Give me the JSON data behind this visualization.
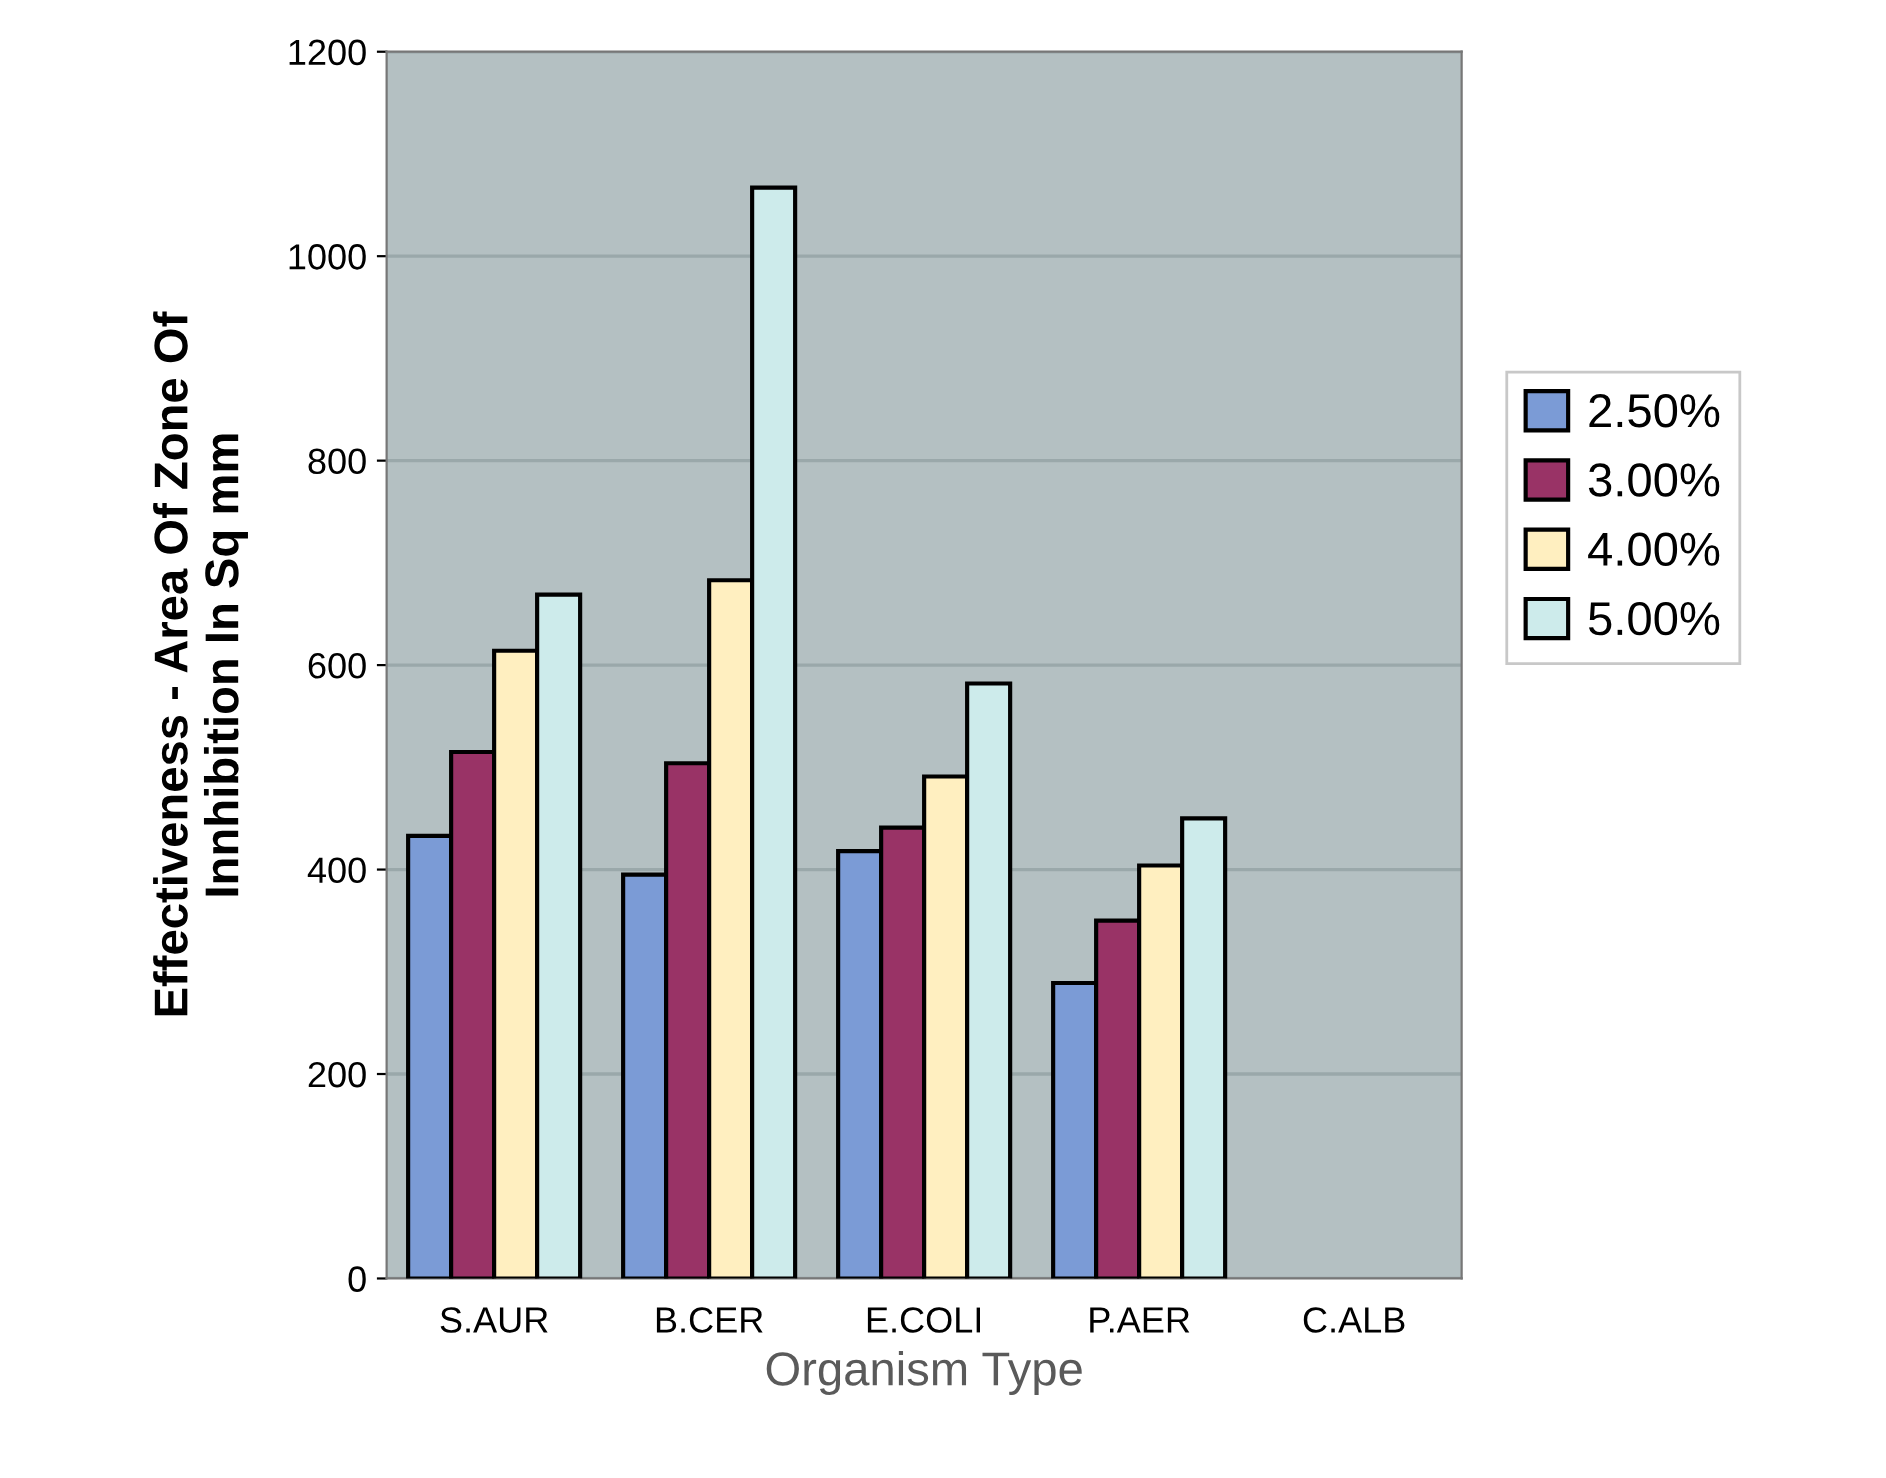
{
  "chart_data": {
    "type": "bar",
    "xlabel": "Organism Type",
    "ylabel": "Effectiveness - Area Of Zone Of\nInnhibition In Sq mm",
    "categories": [
      "S.AUR",
      "B.CER",
      "E.COLI",
      "P.AER",
      "C.ALB"
    ],
    "series": [
      {
        "name": "2.50%",
        "color": "#7b9bd6",
        "values": [
          433,
          395,
          418,
          289,
          null
        ]
      },
      {
        "name": "3.00%",
        "color": "#993366",
        "values": [
          515,
          504,
          441,
          350,
          null
        ]
      },
      {
        "name": "4.00%",
        "color": "#ffefc0",
        "values": [
          614,
          683,
          491,
          404,
          null
        ]
      },
      {
        "name": "5.00%",
        "color": "#cdebeb",
        "values": [
          669,
          1067,
          582,
          450,
          null
        ]
      }
    ],
    "ylim": [
      0,
      1200
    ],
    "yticks": [
      0,
      200,
      400,
      600,
      800,
      1000,
      1200
    ],
    "grid": "y",
    "legend": "right"
  }
}
